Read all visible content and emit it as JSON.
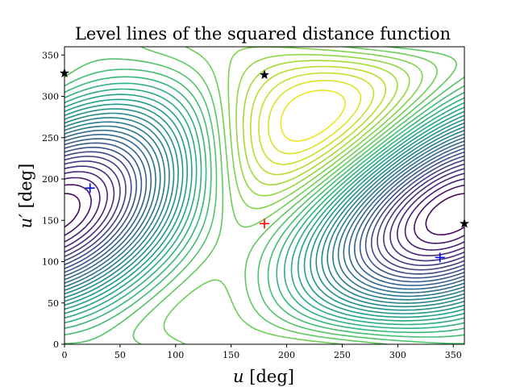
{
  "chart_data": {
    "type": "contour",
    "title": "Level lines of the squared distance function",
    "xlabel_var": "u",
    "xlabel_unit": " [deg]",
    "ylabel_var": "u′",
    "ylabel_unit": " [deg]",
    "xlim": [
      0,
      360
    ],
    "ylim": [
      0,
      360
    ],
    "x_ticks": [
      0,
      50,
      100,
      150,
      200,
      250,
      300,
      350
    ],
    "y_ticks": [
      0,
      50,
      100,
      150,
      200,
      250,
      300,
      350
    ],
    "grid": false,
    "colormap": "viridis",
    "maximum_marker": {
      "x": 180,
      "y": 146,
      "color": "#ff0000",
      "symbol": "+"
    },
    "critical_markers": [
      {
        "x": 23,
        "y": 189,
        "color": "#0000ff",
        "symbol": "+"
      },
      {
        "x": 338,
        "y": 105,
        "color": "#0000ff",
        "symbol": "+"
      }
    ],
    "minimum_markers": [
      {
        "x": 0,
        "y": 328,
        "color": "#000000",
        "symbol": "star"
      },
      {
        "x": 180,
        "y": 326,
        "color": "#000000",
        "symbol": "star"
      },
      {
        "x": 360,
        "y": 146,
        "color": "#000000",
        "symbol": "star"
      }
    ]
  }
}
